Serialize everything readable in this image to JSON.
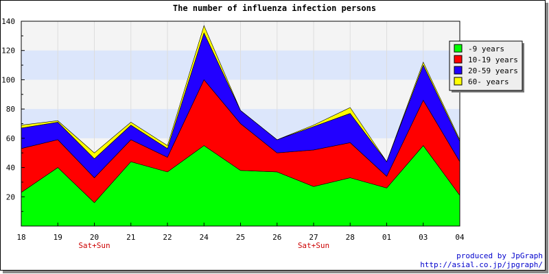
{
  "chart_data": {
    "type": "area",
    "stacked": true,
    "title": "The number of influenza infection persons",
    "categories": [
      "18",
      "19",
      "20",
      "21",
      "22",
      "24",
      "25",
      "26",
      "27",
      "28",
      "01",
      "03",
      "04"
    ],
    "category_notes": [
      "",
      "",
      "Sat+Sun",
      "",
      "",
      "",
      "",
      "",
      "Sat+Sun",
      "",
      "",
      "",
      ""
    ],
    "ylim": [
      0,
      140
    ],
    "yticks": [
      20,
      40,
      60,
      80,
      100,
      120,
      140
    ],
    "grid": true,
    "legend_position": "right",
    "series": [
      {
        "name": "-9 years",
        "color": "#00ff00",
        "values": [
          23,
          40,
          16,
          44,
          37,
          55,
          38,
          37,
          27,
          33,
          26,
          55,
          21
        ]
      },
      {
        "name": "10-19 years",
        "color": "#ff0000",
        "values": [
          30,
          19,
          17,
          15,
          10,
          45,
          32,
          13,
          25,
          24,
          8,
          31,
          23
        ]
      },
      {
        "name": "20-59 years",
        "color": "#2200ff",
        "values": [
          14,
          12,
          13,
          10,
          6,
          32,
          9,
          9,
          16,
          20,
          10,
          24,
          14
        ]
      },
      {
        "name": "60- years",
        "color": "#ffff00",
        "values": [
          2,
          1,
          4,
          2,
          2,
          5,
          0,
          0,
          1,
          4,
          0,
          2,
          1
        ]
      }
    ]
  },
  "credit": {
    "line1": "produced by JpGraph",
    "line2": "http://asial.co.jp/jpgraph/"
  }
}
